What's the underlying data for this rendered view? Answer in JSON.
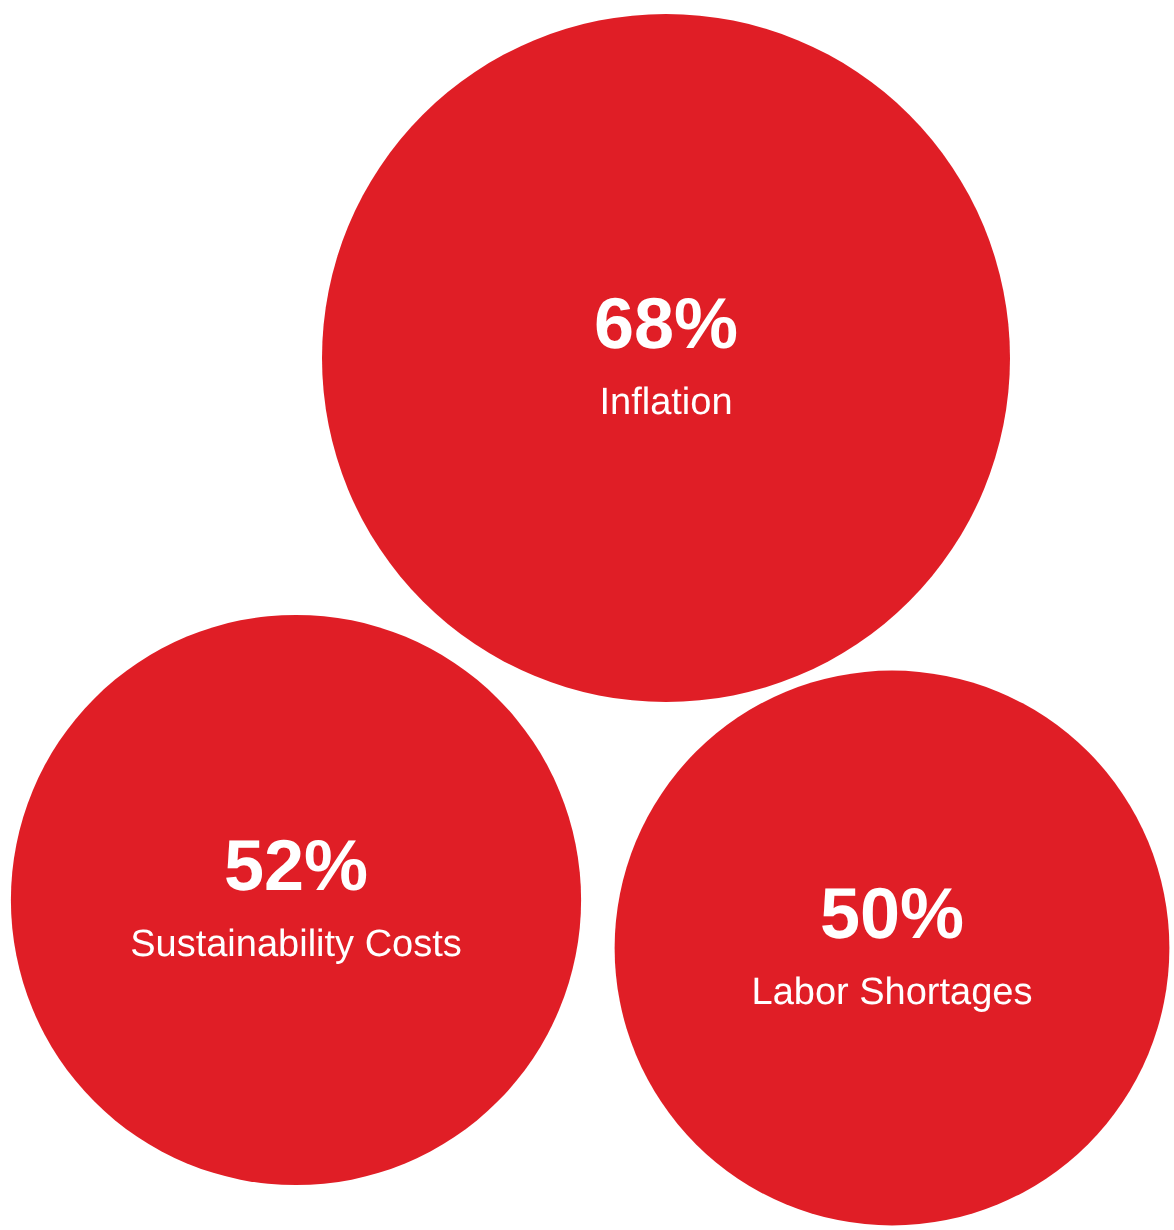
{
  "chart_data": {
    "type": "other",
    "categories": [
      "Inflation",
      "Sustainability Costs",
      "Labor Shortages"
    ],
    "values": [
      68,
      52,
      50
    ],
    "value_labels": [
      "68%",
      "52%",
      "50%"
    ],
    "color": "#e01e26"
  }
}
